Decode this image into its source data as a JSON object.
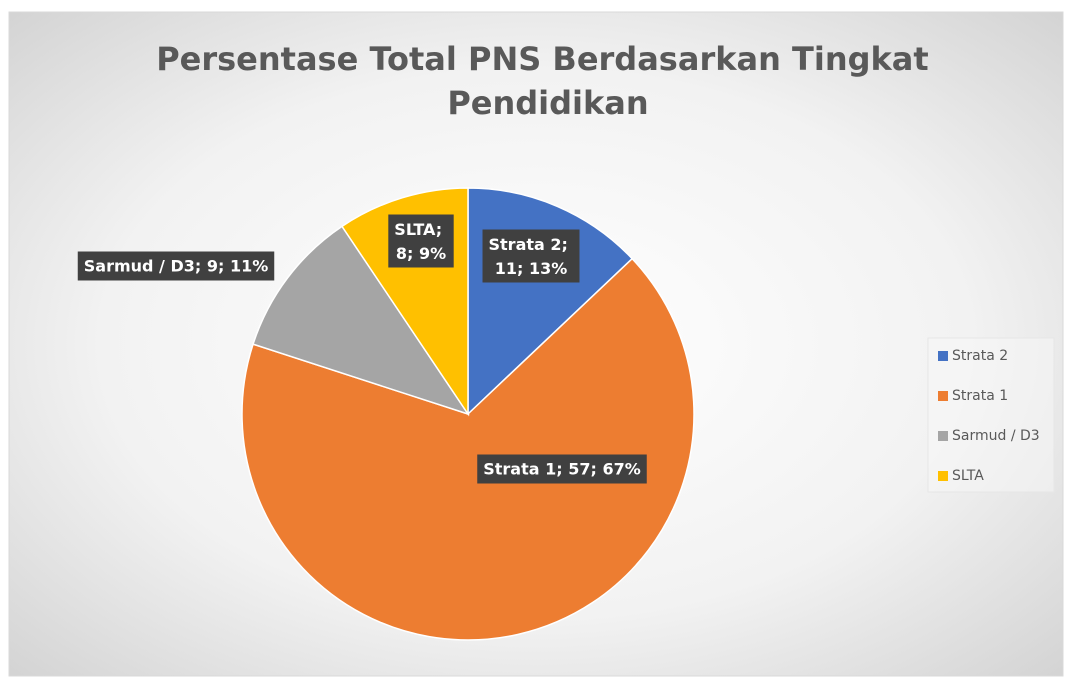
{
  "chart_data": {
    "type": "pie",
    "title": "Persentase Total PNS Berdasarkan Tingkat Pendidikan",
    "categories": [
      "Strata 2",
      "Strata 1",
      "Sarmud / D3",
      "SLTA"
    ],
    "values": [
      11,
      57,
      9,
      8
    ],
    "value_labels": [
      "Strata 2; 11; 13%",
      "Strata 1; 57; 67%",
      "Sarmud / D3; 9; 11%",
      "SLTA; 8; 9%"
    ],
    "colors": [
      "#4472c4",
      "#ed7d31",
      "#a5a5a5",
      "#ffc000"
    ],
    "legend": "right"
  }
}
